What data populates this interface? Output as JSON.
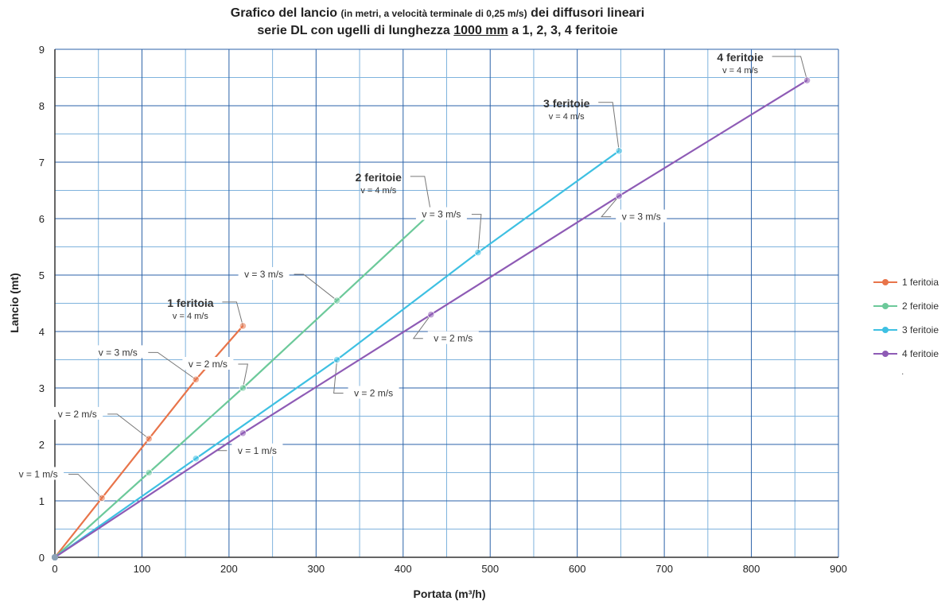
{
  "title": {
    "line1_bold": "Grafico del lancio",
    "line1_small": "(in metri, a velocità terminale di 0,25 m/s)",
    "line1_tail": "dei diffusori lineari",
    "line2_prefix": "serie DL con ugelli di lunghezza",
    "line2_underlined": "1000 mm",
    "line2_suffix": "a 1, 2, 3, 4 feritoie"
  },
  "legend_extra": ".",
  "chart_data": {
    "type": "line",
    "xlabel": "Portata (m³/h)",
    "ylabel": "Lancio (mt)",
    "xlim": [
      0,
      900
    ],
    "ylim": [
      0,
      9
    ],
    "x_ticks": [
      0,
      100,
      200,
      300,
      400,
      500,
      600,
      700,
      800,
      900
    ],
    "y_ticks": [
      0,
      1,
      2,
      3,
      4,
      5,
      6,
      7,
      8,
      9
    ],
    "grid": true,
    "legend_position": "right",
    "series": [
      {
        "name": "1 feritoia",
        "color": "#E8744A",
        "points": [
          [
            0,
            0
          ],
          [
            54,
            1.05
          ],
          [
            108,
            2.1
          ],
          [
            162,
            3.15
          ],
          [
            216,
            4.1
          ]
        ],
        "label": "1 feritoia",
        "label_v": "v = 4 m/s"
      },
      {
        "name": "2 feritoie",
        "color": "#6CC99A",
        "points": [
          [
            0,
            0
          ],
          [
            108,
            1.5
          ],
          [
            216,
            3.0
          ],
          [
            324,
            4.55
          ],
          [
            432,
            6.1
          ]
        ],
        "label": "2 feritoie",
        "label_v": "v = 4 m/s"
      },
      {
        "name": "3 feritoie",
        "color": "#3EC0E2",
        "points": [
          [
            0,
            0
          ],
          [
            162,
            1.75
          ],
          [
            324,
            3.5
          ],
          [
            486,
            5.4
          ],
          [
            648,
            7.2
          ]
        ],
        "label": "3 feritoie",
        "label_v": "v = 4 m/s"
      },
      {
        "name": "4 feritoie",
        "color": "#8E5BB5",
        "points": [
          [
            0,
            0
          ],
          [
            216,
            2.2
          ],
          [
            432,
            4.3
          ],
          [
            648,
            6.4
          ],
          [
            864,
            8.45
          ]
        ],
        "label": "4 feritoie",
        "label_v": "v = 4 m/s"
      }
    ],
    "annotations": [
      {
        "text": "v = 1 m/s",
        "x": 54,
        "y": 1.05
      },
      {
        "text": "v = 2 m/s",
        "x": 108,
        "y": 2.1
      },
      {
        "text": "v = 3 m/s",
        "x": 162,
        "y": 3.15
      },
      {
        "text": "v = 2 m/s",
        "x": 216,
        "y": 3.0
      },
      {
        "text": "v = 3 m/s",
        "x": 324,
        "y": 4.55
      },
      {
        "text": "v = 1 m/s",
        "x": 216,
        "y": 2.2
      },
      {
        "text": "v = 2 m/s",
        "x": 324,
        "y": 3.5
      },
      {
        "text": "v = 3 m/s",
        "x": 486,
        "y": 5.4
      },
      {
        "text": "v = 2 m/s",
        "x": 432,
        "y": 4.3
      },
      {
        "text": "v = 3 m/s",
        "x": 648,
        "y": 6.4
      }
    ]
  }
}
